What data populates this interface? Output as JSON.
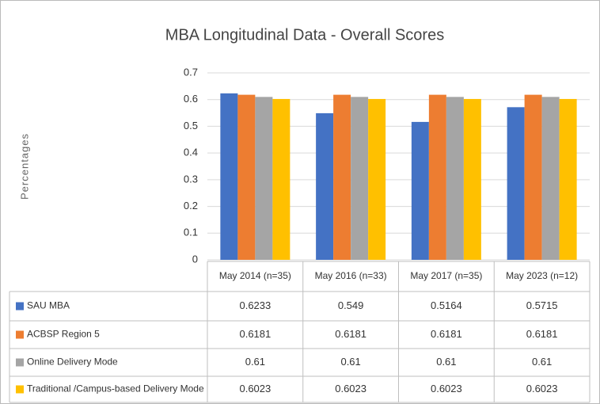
{
  "chart_data": {
    "type": "bar",
    "title": "MBA Longitudinal Data - Overall Scores",
    "y_label": "Percentages",
    "categories": [
      "May 2014 (n=35)",
      "May 2016 (n=33)",
      "May 2017 (n=35)",
      "May 2023 (n=12)"
    ],
    "series": [
      {
        "name": "SAU MBA",
        "color": "#4472c4",
        "values": [
          0.6233,
          0.549,
          0.5164,
          0.5715
        ]
      },
      {
        "name": "ACBSP Region 5",
        "color": "#ed7d31",
        "values": [
          0.6181,
          0.6181,
          0.6181,
          0.6181
        ]
      },
      {
        "name": "Online Delivery Mode",
        "color": "#a5a5a5",
        "values": [
          0.61,
          0.61,
          0.61,
          0.61
        ]
      },
      {
        "name": "Traditional /Campus-based Delivery Mode",
        "color": "#ffc000",
        "values": [
          0.6023,
          0.6023,
          0.6023,
          0.6023
        ]
      }
    ],
    "ylim": [
      0,
      0.7
    ],
    "yticks": [
      0,
      0.1,
      0.2,
      0.3,
      0.4,
      0.5,
      0.6,
      0.7
    ],
    "grid": true
  }
}
